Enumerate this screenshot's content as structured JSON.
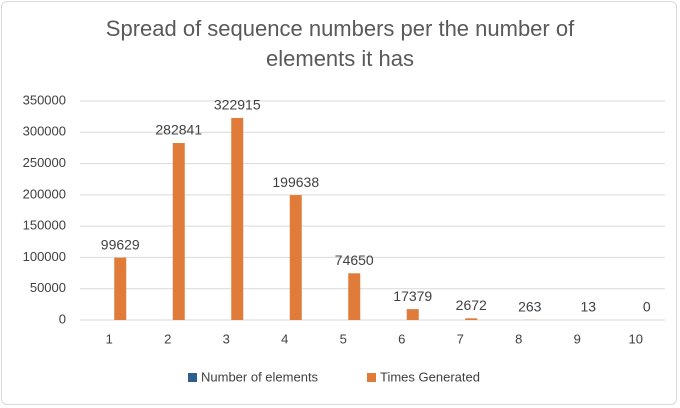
{
  "chart_data": {
    "type": "bar",
    "title": "Spread of sequence numbers per the number of elements it has",
    "categories": [
      1,
      2,
      3,
      4,
      5,
      6,
      7,
      8,
      9,
      10
    ],
    "series": [
      {
        "name": "Number of elements",
        "color": "#2f5f8f",
        "values": [
          1,
          2,
          3,
          4,
          5,
          6,
          7,
          8,
          9,
          10
        ]
      },
      {
        "name": "Times Generated",
        "color": "#e07b39",
        "values": [
          99629,
          282841,
          322915,
          199638,
          74650,
          17379,
          2672,
          263,
          13,
          0
        ],
        "data_labels": true
      }
    ],
    "ylim": [
      0,
      350000
    ],
    "yticks": [
      0,
      50000,
      100000,
      150000,
      200000,
      250000,
      300000,
      350000
    ],
    "grid": true,
    "legend": "bottom"
  }
}
